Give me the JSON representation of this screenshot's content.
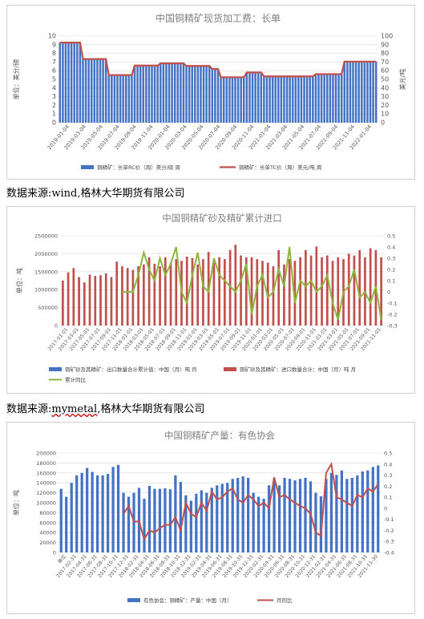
{
  "charts": [
    {
      "type": "bar_line",
      "title": "中国铜精矿现货加工费：长单",
      "ylabel_left": "单位：美分/磅",
      "ylabel_right": "美元/吨",
      "left_ylim": [
        0,
        10
      ],
      "left_ticks": [
        0,
        1,
        2,
        3,
        4,
        5,
        6,
        7,
        8,
        9,
        10
      ],
      "right_ylim": [
        0,
        100
      ],
      "right_ticks": [
        0,
        10,
        20,
        30,
        40,
        50,
        60,
        70,
        80,
        90,
        100
      ],
      "x_labels": [
        "2019-01-04",
        "2019-03-04",
        "2019-05-04",
        "2019-07-04",
        "2019-09-04",
        "2019-11-04",
        "2020-01-04",
        "2020-03-04",
        "2020-05-04",
        "2020-07-04",
        "2020-09-04",
        "2020-11-04",
        "2021-01-04",
        "2021-03-04",
        "2021-05-04",
        "2021-07-04",
        "2021-09-04",
        "2021-11-04",
        "2022-01-04"
      ],
      "legend": [
        "铜精矿：长单RC价（周）美分/磅 周",
        "铜精矿：长单TC价（周）美元/吨 周"
      ],
      "segments": [
        {
          "weeks": 8,
          "tc": 92.5
        },
        {
          "weeks": 9,
          "tc": 73.5
        },
        {
          "weeks": 9,
          "tc": 55.0
        },
        {
          "weeks": 9,
          "tc": 66.0
        },
        {
          "weeks": 9,
          "tc": 68.5
        },
        {
          "weeks": 9,
          "tc": 65.5
        },
        {
          "weeks": 3,
          "tc": 62.0
        },
        {
          "weeks": 9,
          "tc": 52.5
        },
        {
          "weeks": 6,
          "tc": 58.0
        },
        {
          "weeks": 18,
          "tc": 53.5
        },
        {
          "weeks": 10,
          "tc": 56.0
        },
        {
          "weeks": 12,
          "tc": 70.5
        }
      ],
      "source": "数据来源:wind,格林大华期货有限公司"
    },
    {
      "type": "bar_line",
      "title": "中国铜精矿砂及精矿累计进口",
      "ylabel_left": "单位：吨",
      "left_ylim": [
        0,
        2500000
      ],
      "left_ticks": [
        0,
        500000,
        1000000,
        1500000,
        2000000,
        2500000
      ],
      "right_ylim": [
        -0.3,
        0.5
      ],
      "right_ticks": [
        -0.3,
        -0.2,
        -0.1,
        0,
        0.1,
        0.2,
        0.3,
        0.4,
        0.5
      ],
      "x_labels": [
        "2017-01-01",
        "2017-03-01",
        "2017-05-01",
        "2017-07-01",
        "2017-09-01",
        "2017-11-01",
        "2018-01-01",
        "2018-03-01",
        "2018-05-01",
        "2018-07-01",
        "2018-09-01",
        "2018-11-01",
        "2019-01-01",
        "2019-03-01",
        "2019-05-01",
        "2019-07-01",
        "2019-09-01",
        "2019-11-01",
        "2020-01-01",
        "2020-03-01",
        "2020-05-01",
        "2020-07-01",
        "2020-09-01",
        "2020-11-01",
        "2021-01-01",
        "2021-03-01",
        "2021-05-01",
        "2021-07-01",
        "2021-09-01",
        "2021-11-01"
      ],
      "legend": [
        "铜矿砂及其精矿：出口数量合计累计值：中国（月）吨 月",
        "铜矿砂及其精矿：进口数量合计：中国（月）吨 月",
        "累计同比"
      ],
      "import_values": [
        1250000,
        1480000,
        1600000,
        1350000,
        1200000,
        1420000,
        1380000,
        1400000,
        1450000,
        1350000,
        1780000,
        1650000,
        1600000,
        1550000,
        1650000,
        1700000,
        1900000,
        1720000,
        1650000,
        1900000,
        1750000,
        1850000,
        1800000,
        1920000,
        1880000,
        1700000,
        1850000,
        2050000,
        1750000,
        1900000,
        1850000,
        2100000,
        2250000,
        1950000,
        1900000,
        1900000,
        1850000,
        1800000,
        1750000,
        1650000,
        2100000,
        1700000,
        1850000,
        1800000,
        1900000,
        2100000,
        1950000,
        2200000,
        1900000,
        1950000,
        1800000,
        1900000,
        1850000,
        2000000,
        1950000,
        2100000,
        1900000,
        2150000,
        2100000,
        1900000
      ],
      "yoy_values": [
        null,
        null,
        null,
        null,
        null,
        null,
        null,
        null,
        null,
        null,
        null,
        0.0,
        0.0,
        0.0,
        0.15,
        0.35,
        0.2,
        0.1,
        0.3,
        0.15,
        0.25,
        0.4,
        0.0,
        -0.1,
        0.15,
        0.35,
        0.05,
        0.0,
        0.3,
        0.15,
        0.1,
        0.05,
        0.0,
        0.1,
        0.25,
        -0.2,
        0.05,
        0.15,
        -0.05,
        0.0,
        0.2,
        0.05,
        0.4,
        -0.1,
        0.1,
        0.05,
        0.1,
        0.0,
        0.05,
        0.15,
        -0.1,
        -0.25,
        0.0,
        0.05,
        0.2,
        -0.05,
        0.0,
        -0.1,
        0.05,
        -0.25
      ],
      "source_prefix": "数据来源:",
      "source_underlined": "mymetal",
      "source_suffix": ",格林大华期货有限公司"
    },
    {
      "type": "bar_line",
      "title": "中国铜精矿产量：有色协会",
      "ylabel_left": "单位：吨",
      "left_ylim": [
        0,
        200000
      ],
      "left_ticks": [
        0,
        20000,
        40000,
        60000,
        80000,
        100000,
        120000,
        140000,
        160000,
        180000,
        200000
      ],
      "right_ylim": [
        -0.4,
        0.5
      ],
      "right_ticks": [
        -0.4,
        -0.3,
        -0.2,
        -0.1,
        0,
        0.1,
        0.2,
        0.3,
        0.4,
        0.5
      ],
      "x_labels": [
        "单位",
        "2017-02-31",
        "2017-04-31",
        "2017-06-31",
        "2017-08-31",
        "2017-10-31",
        "2017-12-31",
        "2018-02-31",
        "2018-04-31",
        "2018-06-31",
        "2018-08-31",
        "2018-10-31",
        "2018-12-31",
        "2019-02-31",
        "2019-04-31",
        "2019-06-31",
        "2019-08-31",
        "2019-10-31",
        "2019-12-31",
        "2020-02-31",
        "2020-04-31",
        "2020-06-31",
        "2020-08-31",
        "2020-10-31",
        "2020-12-31",
        "2021-02-31",
        "2021-04-31",
        "2021-06-31",
        "2021-08-31",
        "2021-10-31",
        "2021-11-30"
      ],
      "legend": [
        "有色协会：铜精矿：产量：中国（月）",
        "月同比"
      ],
      "production_values": [
        128000,
        112000,
        140000,
        155000,
        160000,
        170000,
        162000,
        155000,
        155000,
        158000,
        172000,
        176000,
        120000,
        112000,
        120000,
        130000,
        108000,
        134000,
        128000,
        128000,
        129000,
        127000,
        155000,
        142000,
        115000,
        104000,
        118000,
        125000,
        120000,
        130000,
        135000,
        138000,
        140000,
        148000,
        150000,
        153000,
        150000,
        120000,
        112000,
        108000,
        135000,
        148000,
        135000,
        150000,
        148000,
        145000,
        148000,
        150000,
        143000,
        120000,
        113000,
        148000,
        160000,
        156000,
        165000,
        148000,
        150000,
        155000,
        163000,
        165000,
        172000,
        175000
      ],
      "yoy_values": [
        null,
        null,
        null,
        null,
        null,
        null,
        null,
        null,
        null,
        null,
        null,
        null,
        -0.05,
        0.02,
        -0.12,
        -0.12,
        -0.28,
        -0.2,
        -0.22,
        -0.18,
        -0.15,
        -0.15,
        -0.08,
        -0.2,
        0.05,
        -0.05,
        -0.08,
        0.05,
        -0.02,
        0.15,
        0.08,
        0.1,
        0.15,
        0.18,
        0.08,
        0.05,
        0.12,
        0.08,
        0.02,
        0.05,
        0.0,
        0.28,
        0.1,
        0.12,
        0.08,
        0.05,
        0.02,
        0.0,
        -0.05,
        -0.22,
        -0.25,
        0.32,
        0.4,
        0.1,
        0.08,
        0.05,
        0.02,
        0.12,
        0.1,
        0.18,
        0.15,
        0.22
      ],
      "source": ""
    }
  ],
  "colors": {
    "bar_blue": "#4472C4",
    "bar_red": "#C0504D",
    "line_red": "#C0504D",
    "line_green": "#8DB63C",
    "grid": "#d9d9d9",
    "title": "#7f7f7f"
  }
}
